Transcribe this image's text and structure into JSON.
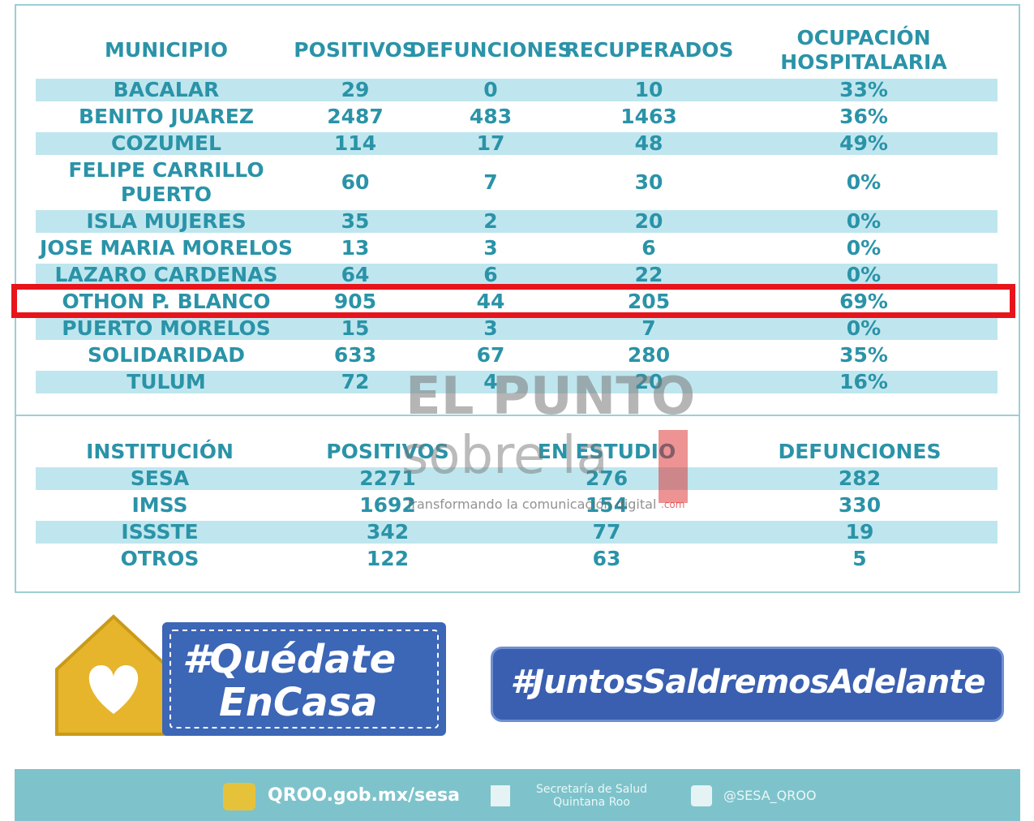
{
  "table1": {
    "headers": [
      "MUNICIPIO",
      "POSITIVOS",
      "DEFUNCIONES",
      "RECUPERADOS",
      "OCUPACIÓN HOSPITALARIA"
    ],
    "rows": [
      [
        "BACALAR",
        "29",
        "0",
        "10",
        "33%"
      ],
      [
        "BENITO JUAREZ",
        "2487",
        "483",
        "1463",
        "36%"
      ],
      [
        "COZUMEL",
        "114",
        "17",
        "48",
        "49%"
      ],
      [
        "FELIPE CARRILLO PUERTO",
        "60",
        "7",
        "30",
        "0%"
      ],
      [
        "ISLA MUJERES",
        "35",
        "2",
        "20",
        "0%"
      ],
      [
        "JOSE MARIA MORELOS",
        "13",
        "3",
        "6",
        "0%"
      ],
      [
        "LAZARO CARDENAS",
        "64",
        "6",
        "22",
        "0%"
      ],
      [
        "OTHON P. BLANCO",
        "905",
        "44",
        "205",
        "69%"
      ],
      [
        "PUERTO MORELOS",
        "15",
        "3",
        "7",
        "0%"
      ],
      [
        "SOLIDARIDAD",
        "633",
        "67",
        "280",
        "35%"
      ],
      [
        "TULUM",
        "72",
        "4",
        "20",
        "16%"
      ]
    ]
  },
  "table2": {
    "headers": [
      "INSTITUCIÓN",
      "POSITIVOS",
      "EN ESTUDIO",
      "DEFUNCIONES"
    ],
    "rows": [
      [
        "SESA",
        "2271",
        "276",
        "282"
      ],
      [
        "IMSS",
        "1692",
        "154",
        "330"
      ],
      [
        "ISSSTE",
        "342",
        "77",
        "19"
      ],
      [
        "OTROS",
        "122",
        "63",
        "5"
      ]
    ]
  },
  "watermark": {
    "brand": "EL PUNTO",
    "sub": "sobre la",
    "tagline": "Transformando la comunicación digital",
    "domain": ".com"
  },
  "banners": {
    "left_line1": "#Quédate",
    "left_line2": "EnCasa",
    "right": "#JuntosSaldremosAdelante"
  },
  "footer": {
    "website": "QROO.gob.mx/sesa",
    "facebook": "Secretaría de Salud Quintana Roo",
    "twitter": "@SESA_QROO"
  }
}
